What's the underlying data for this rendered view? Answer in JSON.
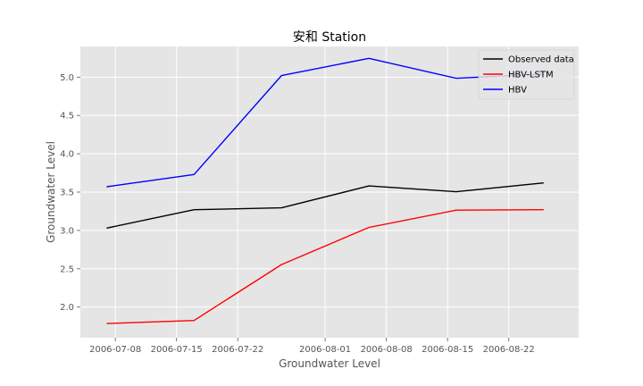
{
  "chart_data": {
    "type": "line",
    "title": "安和 Station",
    "xlabel": "Groundwater Level",
    "ylabel": "Groundwater Level",
    "x": [
      "2006-07-07",
      "2006-07-17",
      "2006-07-27",
      "2006-08-06",
      "2006-08-16",
      "2006-08-26"
    ],
    "xticks": [
      "2006-07-08",
      "2006-07-15",
      "2006-07-22",
      "2006-08-01",
      "2006-08-08",
      "2006-08-15",
      "2006-08-22"
    ],
    "yticks": [
      "2.0",
      "2.5",
      "3.0",
      "3.5",
      "4.0",
      "4.5",
      "5.0"
    ],
    "ylim": [
      1.6,
      5.4
    ],
    "grid": true,
    "legend_position": "top-right",
    "series": [
      {
        "name": "Observed data",
        "color": "#000000",
        "values": [
          3.03,
          3.27,
          3.295,
          3.58,
          3.505,
          3.62
        ]
      },
      {
        "name": "HBV-LSTM",
        "color": "#ff0000",
        "values": [
          1.785,
          1.825,
          2.555,
          3.04,
          3.265,
          3.27
        ]
      },
      {
        "name": "HBV",
        "color": "#0000ff",
        "values": [
          3.57,
          3.73,
          5.02,
          5.245,
          4.985,
          5.04
        ]
      }
    ]
  }
}
